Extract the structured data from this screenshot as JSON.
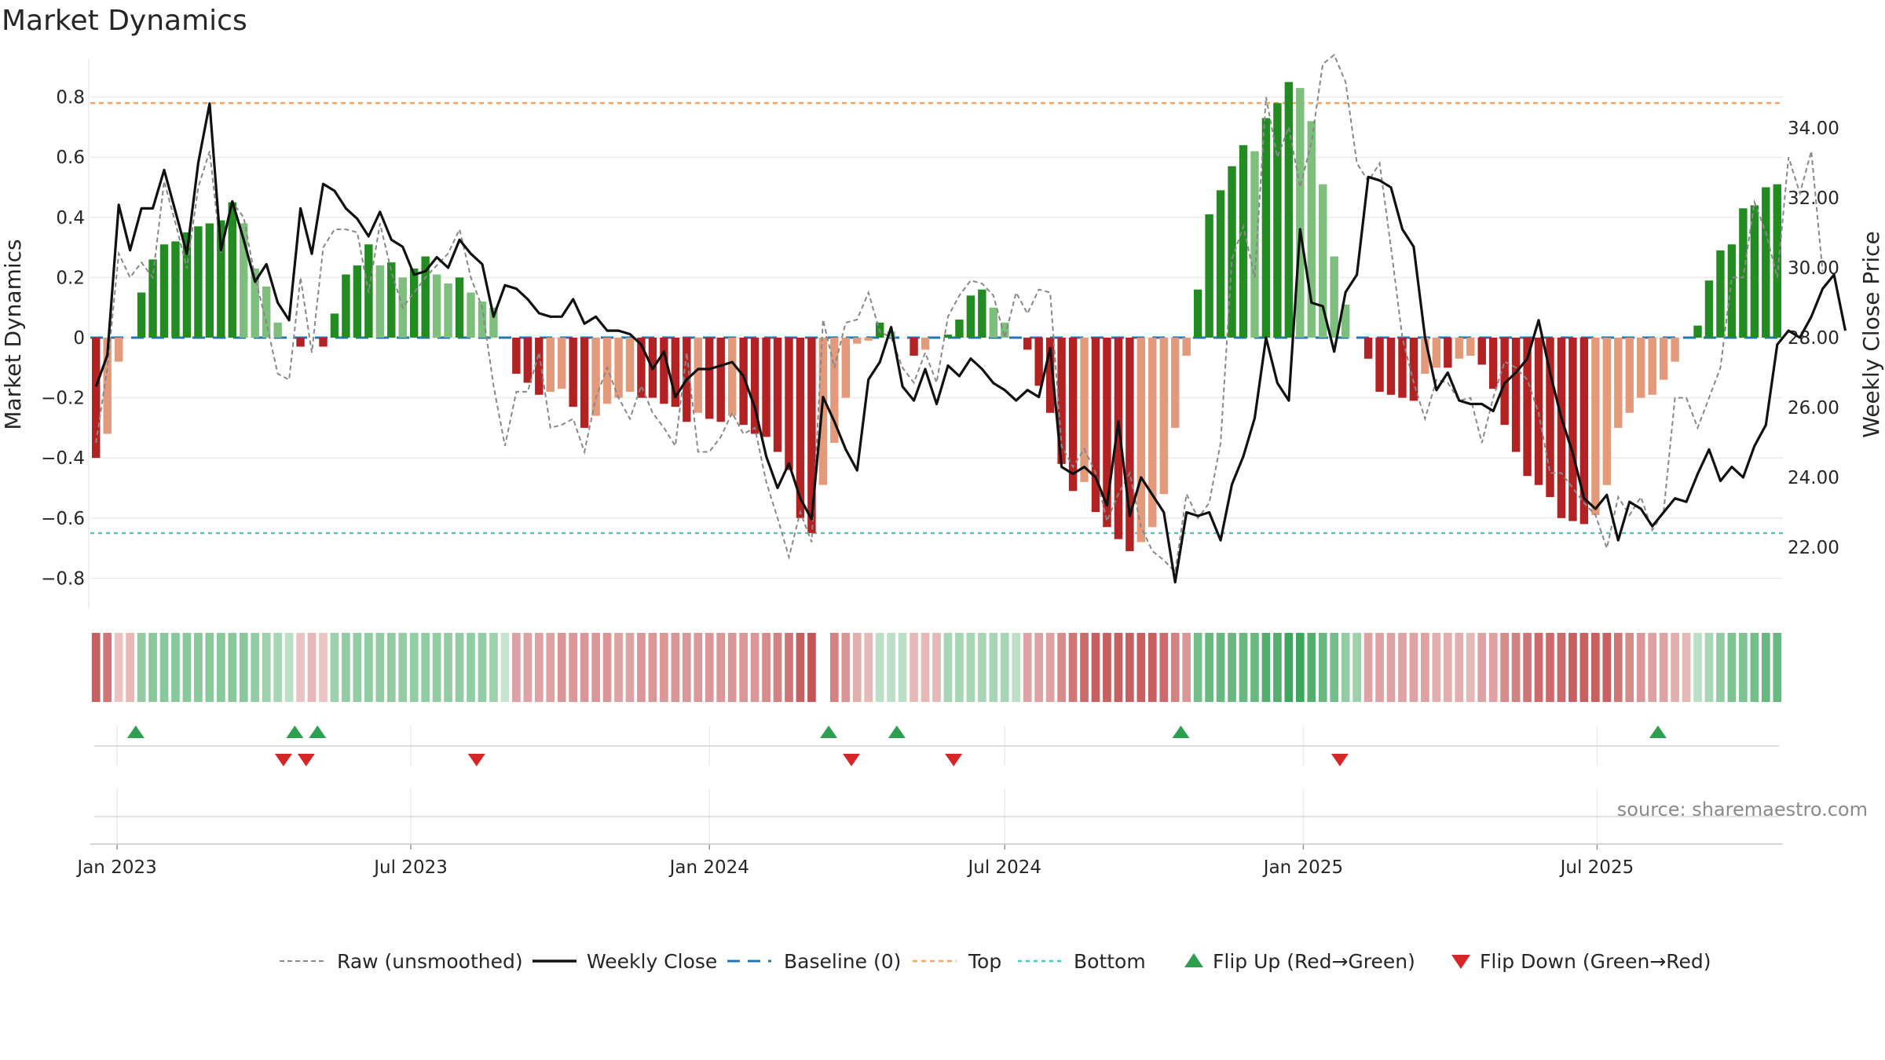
{
  "title": "Market Dynamics",
  "source": "source: sharemaestro.com",
  "colors": {
    "strong_green": "#228b22",
    "light_green": "#7ebf7e",
    "strong_red": "#b22222",
    "light_red": "#e39a7a",
    "close": "#111111",
    "raw": "#888888",
    "baseline": "#1f77b4",
    "top": "#f4a460",
    "bottom": "#48c9c9",
    "flip_up": "#2e9e4f",
    "flip_down": "#d62728"
  },
  "chart_data": {
    "type": "bar",
    "title": "Market Dynamics",
    "ylabel": "Market Dynamics",
    "y2label": "Weekly Close Price",
    "ylim": [
      -0.9,
      0.92
    ],
    "y2lim": [
      20.76,
      36.37
    ],
    "yticks": [
      "0.8",
      "0.6",
      "0.4",
      "0.2",
      "0",
      "−0.2",
      "−0.4",
      "−0.6",
      "−0.8"
    ],
    "y2ticks": [
      "34.00",
      "32.00",
      "30.00",
      "28.00",
      "26.00",
      "24.00",
      "22.00"
    ],
    "xticks": [
      "Jan 2023",
      "Jul 2023",
      "Jan 2024",
      "Jul 2024",
      "Jan 2025",
      "Jul 2025"
    ],
    "start_date": "2022-12-19",
    "top_level": 0.78,
    "bottom_level": -0.65,
    "baseline": 0,
    "grid": true,
    "legend_position": "bottom",
    "legend": [
      "Raw (unsmoothed)",
      "Weekly Close",
      "Baseline (0)",
      "Top",
      "Bottom",
      "Flip Up (Red→Green)",
      "Flip Down (Green→Red)"
    ],
    "momentum": [
      -0.4,
      -0.32,
      -0.08,
      0.0,
      0.15,
      0.26,
      0.31,
      0.32,
      0.35,
      0.37,
      0.38,
      0.39,
      0.45,
      0.38,
      0.23,
      0.17,
      0.05,
      0.0,
      -0.03,
      0.0,
      -0.03,
      0.08,
      0.21,
      0.24,
      0.31,
      0.24,
      0.25,
      0.2,
      0.23,
      0.27,
      0.21,
      0.18,
      0.2,
      0.15,
      0.12,
      0.1,
      0.0,
      -0.12,
      -0.15,
      -0.19,
      -0.18,
      -0.17,
      -0.23,
      -0.3,
      -0.26,
      -0.22,
      -0.2,
      -0.18,
      -0.2,
      -0.2,
      -0.22,
      -0.23,
      -0.28,
      -0.25,
      -0.27,
      -0.28,
      -0.26,
      -0.29,
      -0.32,
      -0.33,
      -0.38,
      -0.44,
      -0.6,
      -0.65,
      -0.49,
      -0.35,
      -0.2,
      -0.02,
      -0.01,
      0.05,
      0.02,
      0.0,
      -0.06,
      -0.04,
      0.0,
      0.01,
      0.06,
      0.14,
      0.16,
      0.1,
      0.05,
      0.0,
      -0.04,
      -0.16,
      -0.25,
      -0.42,
      -0.51,
      -0.48,
      -0.58,
      -0.63,
      -0.67,
      -0.71,
      -0.68,
      -0.63,
      -0.52,
      -0.3,
      -0.06,
      0.16,
      0.41,
      0.49,
      0.57,
      0.64,
      0.62,
      0.73,
      0.78,
      0.85,
      0.83,
      0.72,
      0.51,
      0.27,
      0.11,
      0.0,
      -0.07,
      -0.18,
      -0.19,
      -0.2,
      -0.21,
      -0.12,
      -0.1,
      -0.1,
      -0.07,
      -0.06,
      -0.09,
      -0.17,
      -0.29,
      -0.38,
      -0.46,
      -0.49,
      -0.53,
      -0.6,
      -0.61,
      -0.62,
      -0.59,
      -0.49,
      -0.3,
      -0.25,
      -0.2,
      -0.19,
      -0.14,
      -0.08,
      0.0,
      0.04,
      0.19,
      0.29,
      0.31,
      0.43,
      0.44,
      0.5,
      0.51
    ],
    "close": [
      26.6,
      27.5,
      31.8,
      30.5,
      31.7,
      31.7,
      32.8,
      31.6,
      30.4,
      33.0,
      34.7,
      30.5,
      31.9,
      30.8,
      29.6,
      30.1,
      29.0,
      28.5,
      31.7,
      30.4,
      32.4,
      32.2,
      31.7,
      31.4,
      30.9,
      31.6,
      30.8,
      30.6,
      29.8,
      29.9,
      30.3,
      30.0,
      30.8,
      30.4,
      30.1,
      28.6,
      29.5,
      29.4,
      29.1,
      28.7,
      28.6,
      28.6,
      29.1,
      28.4,
      28.6,
      28.2,
      28.2,
      28.1,
      27.8,
      27.1,
      27.6,
      26.3,
      26.8,
      27.1,
      27.1,
      27.2,
      27.3,
      26.9,
      26.0,
      24.6,
      23.7,
      24.4,
      23.4,
      22.8,
      26.3,
      25.6,
      24.8,
      24.2,
      26.8,
      27.3,
      28.3,
      26.6,
      26.2,
      27.1,
      26.1,
      27.2,
      26.9,
      27.4,
      27.1,
      26.7,
      26.5,
      26.2,
      26.5,
      26.3,
      27.7,
      24.3,
      24.1,
      24.3,
      24.0,
      23.2,
      25.6,
      22.9,
      24.0,
      23.5,
      23.0,
      21.0,
      23.0,
      22.9,
      23.0,
      22.2,
      23.8,
      24.6,
      25.7,
      28.0,
      26.7,
      26.2,
      31.1,
      29.0,
      28.9,
      27.6,
      29.3,
      29.8,
      32.6,
      32.5,
      32.3,
      31.1,
      30.6,
      28.0,
      26.5,
      27.0,
      26.2,
      26.1,
      26.1,
      25.9,
      26.7,
      27.0,
      27.4,
      28.5,
      27.0,
      25.7,
      24.7,
      23.4,
      23.1,
      23.5,
      22.2,
      23.3,
      23.1,
      22.6,
      23.0,
      23.4,
      23.3,
      24.1,
      24.8,
      23.9,
      24.3,
      24.0,
      24.9,
      25.5,
      27.8,
      28.2,
      28.0,
      28.6,
      29.4,
      29.8,
      28.2
    ],
    "raw": [
      -0.35,
      -0.1,
      0.28,
      0.2,
      0.25,
      0.2,
      0.52,
      0.38,
      0.23,
      0.5,
      0.62,
      0.28,
      0.45,
      0.4,
      0.2,
      0.05,
      -0.12,
      -0.14,
      0.2,
      -0.05,
      0.3,
      0.36,
      0.36,
      0.35,
      0.15,
      0.38,
      0.22,
      0.1,
      0.15,
      0.2,
      0.24,
      0.28,
      0.36,
      0.2,
      0.1,
      -0.16,
      -0.36,
      -0.18,
      -0.18,
      -0.05,
      -0.3,
      -0.29,
      -0.27,
      -0.38,
      -0.2,
      -0.1,
      -0.2,
      -0.27,
      -0.16,
      -0.25,
      -0.3,
      -0.36,
      -0.05,
      -0.38,
      -0.38,
      -0.33,
      -0.25,
      -0.32,
      -0.3,
      -0.48,
      -0.6,
      -0.73,
      -0.58,
      -0.68,
      0.06,
      -0.1,
      0.05,
      0.06,
      0.15,
      0.02,
      0.0,
      -0.1,
      -0.15,
      -0.05,
      -0.15,
      0.07,
      0.14,
      0.19,
      0.18,
      0.14,
      0.0,
      0.15,
      0.08,
      0.16,
      0.15,
      -0.36,
      -0.43,
      -0.37,
      -0.45,
      -0.61,
      -0.52,
      -0.45,
      -0.63,
      -0.71,
      -0.74,
      -0.78,
      -0.52,
      -0.6,
      -0.55,
      -0.35,
      0.26,
      0.37,
      0.2,
      0.8,
      0.6,
      0.7,
      0.5,
      0.65,
      0.91,
      0.94,
      0.85,
      0.58,
      0.52,
      0.58,
      0.3,
      0.0,
      -0.15,
      -0.27,
      -0.14,
      -0.15,
      -0.21,
      -0.2,
      -0.35,
      -0.2,
      -0.08,
      -0.1,
      -0.14,
      -0.25,
      -0.45,
      -0.45,
      -0.5,
      -0.55,
      -0.59,
      -0.7,
      -0.53,
      -0.59,
      -0.53,
      -0.64,
      -0.58,
      -0.2,
      -0.2,
      -0.3,
      -0.2,
      -0.1,
      0.2,
      0.2,
      0.45,
      0.35,
      0.2,
      0.6,
      0.48,
      0.62,
      0.22
    ],
    "regime_strength": [
      0.6,
      0.5,
      0.15,
      0.2,
      0.4,
      0.45,
      0.45,
      0.45,
      0.45,
      0.45,
      0.45,
      0.45,
      0.45,
      0.45,
      0.4,
      0.35,
      0.3,
      0.2,
      0.15,
      0.2,
      0.15,
      0.35,
      0.4,
      0.4,
      0.4,
      0.4,
      0.4,
      0.4,
      0.4,
      0.4,
      0.4,
      0.4,
      0.4,
      0.4,
      0.4,
      0.35,
      0.15,
      0.3,
      0.3,
      0.3,
      0.3,
      0.35,
      0.35,
      0.35,
      0.35,
      0.35,
      0.3,
      0.3,
      0.35,
      0.35,
      0.35,
      0.35,
      0.35,
      0.35,
      0.35,
      0.35,
      0.35,
      0.35,
      0.35,
      0.4,
      0.45,
      0.5,
      0.6,
      0.65,
      0.0,
      0.45,
      0.35,
      0.25,
      0.2,
      0.2,
      0.2,
      0.2,
      0.2,
      0.2,
      0.2,
      0.3,
      0.3,
      0.3,
      0.3,
      0.3,
      0.3,
      0.2,
      0.3,
      0.3,
      0.3,
      0.4,
      0.5,
      0.55,
      0.6,
      0.6,
      0.6,
      0.6,
      0.6,
      0.6,
      0.55,
      0.45,
      0.35,
      0.55,
      0.6,
      0.6,
      0.6,
      0.6,
      0.6,
      0.7,
      0.7,
      0.8,
      0.8,
      0.7,
      0.6,
      0.55,
      0.4,
      0.35,
      0.3,
      0.3,
      0.3,
      0.3,
      0.3,
      0.3,
      0.25,
      0.25,
      0.25,
      0.2,
      0.3,
      0.3,
      0.4,
      0.45,
      0.5,
      0.55,
      0.55,
      0.55,
      0.6,
      0.6,
      0.6,
      0.6,
      0.5,
      0.4,
      0.35,
      0.3,
      0.3,
      0.25,
      0.2,
      0.2,
      0.3,
      0.4,
      0.5,
      0.5,
      0.55,
      0.6,
      0.6,
      0.6
    ],
    "flip_up": [
      4,
      18,
      20,
      65,
      71,
      96,
      138
    ],
    "flip_down": [
      17,
      19,
      34,
      67,
      76,
      110
    ]
  }
}
